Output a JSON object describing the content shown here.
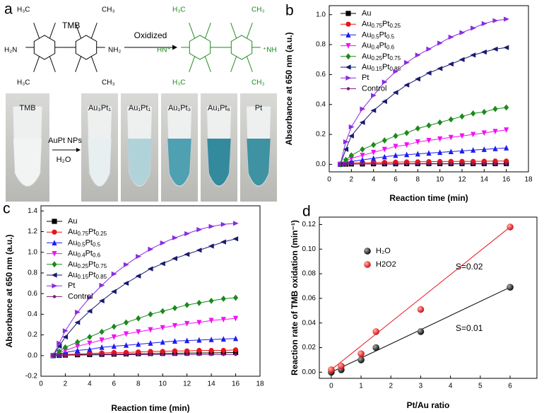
{
  "panel_a": {
    "label": "a",
    "reagent": "TMB",
    "reaction": "Oxidized",
    "catalyst": "AuPt NPs",
    "solvent": "H₂O",
    "tubes": [
      "TMB",
      "Au₃Pt₁",
      "Au₁Pt₁",
      "Au₁Pt₃",
      "Au₁Pt₆",
      "Pt"
    ],
    "tmb_groups": [
      "H₃C",
      "CH₃",
      "H₂N",
      "NH₂",
      "H₃C",
      "CH₃"
    ],
    "oxidized_groups": [
      "H₃C",
      "CH₃",
      "HN⁺",
      "⁺NH",
      "H₃C",
      "CH₃"
    ]
  },
  "chart_data": [
    {
      "type": "line",
      "panel_label": "b",
      "xlabel": "Reaction time (min)",
      "ylabel": "Absorbance at 650 nm (a.u.)",
      "x": [
        1,
        1.5,
        2,
        3,
        4,
        5,
        6,
        7,
        8,
        9,
        10,
        11,
        12,
        13,
        14,
        15,
        16
      ],
      "xlim": [
        0,
        18
      ],
      "xticks": [
        0,
        2,
        4,
        6,
        8,
        10,
        12,
        14,
        16,
        18
      ],
      "ylim": [
        -0.05,
        1.06
      ],
      "yticks": [
        {
          "value": 0,
          "label": "0.0"
        },
        0.2,
        0.4,
        0.6,
        0.8,
        {
          "value": 1,
          "label": "1.0"
        }
      ],
      "series": [
        {
          "name": "Au",
          "color": "#000000",
          "marker": "square",
          "values": [
            0,
            0.002,
            0.003,
            0.003,
            0.004,
            0.004,
            0.004,
            0.005,
            0.005,
            0.005,
            0.005,
            0.005,
            0.005,
            0.005,
            0.005,
            0.005,
            0.005
          ]
        },
        {
          "name": "Au0.75Pt0.25",
          "color": "#e8141b",
          "marker": "circle",
          "values": [
            0,
            0.005,
            0.01,
            0.01,
            0.012,
            0.013,
            0.015,
            0.016,
            0.017,
            0.018,
            0.019,
            0.02,
            0.02,
            0.02,
            0.021,
            0.022,
            0.022
          ]
        },
        {
          "name": "Au0.5Pt0.5",
          "color": "#1c1cf0",
          "marker": "triangle-up",
          "values": [
            0,
            0.01,
            0.02,
            0.03,
            0.04,
            0.05,
            0.06,
            0.065,
            0.07,
            0.075,
            0.08,
            0.085,
            0.09,
            0.095,
            0.1,
            0.105,
            0.11
          ]
        },
        {
          "name": "Au0.4Pt0.6",
          "color": "#f012f0",
          "marker": "triangle-down",
          "values": [
            0,
            0.02,
            0.04,
            0.06,
            0.08,
            0.1,
            0.12,
            0.13,
            0.15,
            0.16,
            0.17,
            0.18,
            0.19,
            0.2,
            0.21,
            0.22,
            0.23
          ]
        },
        {
          "name": "Au0.25Pt0.75",
          "color": "#1b8a1b",
          "marker": "diamond",
          "values": [
            0,
            0.03,
            0.06,
            0.1,
            0.13,
            0.16,
            0.19,
            0.21,
            0.24,
            0.26,
            0.28,
            0.3,
            0.32,
            0.34,
            0.35,
            0.37,
            0.38
          ]
        },
        {
          "name": "Au0.15Pt0.85",
          "color": "#1a1a6e",
          "marker": "triangle-left",
          "values": [
            0,
            0.1,
            0.19,
            0.28,
            0.36,
            0.42,
            0.48,
            0.53,
            0.57,
            0.61,
            0.64,
            0.67,
            0.7,
            0.73,
            0.75,
            0.77,
            0.78
          ]
        },
        {
          "name": "Pt",
          "color": "#8a2be2",
          "marker": "triangle-right",
          "values": [
            0,
            0.15,
            0.25,
            0.37,
            0.46,
            0.55,
            0.62,
            0.68,
            0.73,
            0.77,
            0.81,
            0.85,
            0.88,
            0.91,
            0.94,
            0.96,
            0.97
          ]
        },
        {
          "name": "Control",
          "color": "#7a1a7a",
          "marker": "dot",
          "values": [
            0,
            0.001,
            0.002,
            0.002,
            0.002,
            0.002,
            0.002,
            0.003,
            0.003,
            0.003,
            0.003,
            0.003,
            0.003,
            0.003,
            0.003,
            0.003,
            0.003
          ]
        }
      ]
    },
    {
      "type": "line",
      "panel_label": "c",
      "xlabel": "Reaction time (min)",
      "ylabel": "Absorbance at 650 nm (a.u.)",
      "x": [
        1,
        1.5,
        2,
        3,
        4,
        5,
        6,
        7,
        8,
        9,
        10,
        11,
        12,
        13,
        14,
        15,
        16
      ],
      "xlim": [
        0,
        18
      ],
      "xticks": [
        0,
        2,
        4,
        6,
        8,
        10,
        12,
        14,
        16,
        18
      ],
      "ylim": [
        -0.2,
        1.45
      ],
      "yticks": [
        -0.2,
        {
          "value": 0,
          "label": "0.0"
        },
        0.2,
        0.4,
        0.6,
        0.8,
        {
          "value": 1,
          "label": "1.0"
        },
        1.2,
        1.4
      ],
      "series": [
        {
          "name": "Au",
          "color": "#000000",
          "marker": "square",
          "values": [
            0,
            0.002,
            0.005,
            0.008,
            0.01,
            0.012,
            0.014,
            0.016,
            0.018,
            0.02,
            0.021,
            0.022,
            0.024,
            0.025,
            0.026,
            0.028,
            0.03
          ]
        },
        {
          "name": "Au0.75Pt0.25",
          "color": "#e8141b",
          "marker": "circle",
          "values": [
            0,
            0.005,
            0.01,
            0.015,
            0.02,
            0.025,
            0.03,
            0.03,
            0.035,
            0.04,
            0.04,
            0.045,
            0.045,
            0.05,
            0.05,
            0.05,
            0.055
          ]
        },
        {
          "name": "Au0.5Pt0.5",
          "color": "#1c1cf0",
          "marker": "triangle-up",
          "values": [
            0,
            0.01,
            0.03,
            0.05,
            0.06,
            0.08,
            0.09,
            0.1,
            0.11,
            0.12,
            0.13,
            0.14,
            0.145,
            0.15,
            0.155,
            0.16,
            0.165
          ]
        },
        {
          "name": "Au0.4Pt0.6",
          "color": "#f012f0",
          "marker": "triangle-down",
          "values": [
            0,
            0.03,
            0.05,
            0.09,
            0.12,
            0.15,
            0.18,
            0.21,
            0.23,
            0.25,
            0.27,
            0.29,
            0.31,
            0.32,
            0.34,
            0.35,
            0.36
          ]
        },
        {
          "name": "Au0.25Pt0.75",
          "color": "#1b8a1b",
          "marker": "diamond",
          "values": [
            0,
            0.04,
            0.08,
            0.13,
            0.18,
            0.23,
            0.28,
            0.32,
            0.36,
            0.4,
            0.43,
            0.46,
            0.49,
            0.51,
            0.53,
            0.55,
            0.56
          ]
        },
        {
          "name": "Au0.15Pt0.85",
          "color": "#1a1a6e",
          "marker": "triangle-left",
          "values": [
            0,
            0.09,
            0.18,
            0.32,
            0.43,
            0.53,
            0.62,
            0.7,
            0.77,
            0.84,
            0.89,
            0.94,
            0.98,
            1.02,
            1.06,
            1.1,
            1.13
          ]
        },
        {
          "name": "Pt",
          "color": "#8a2be2",
          "marker": "triangle-right",
          "values": [
            0,
            0.12,
            0.24,
            0.42,
            0.56,
            0.68,
            0.79,
            0.88,
            0.96,
            1.03,
            1.09,
            1.14,
            1.18,
            1.22,
            1.25,
            1.27,
            1.28
          ]
        },
        {
          "name": "Control",
          "color": "#7a1a7a",
          "marker": "dot",
          "values": [
            0,
            0.002,
            0.004,
            0.005,
            0.006,
            0.007,
            0.008,
            0.008,
            0.009,
            0.009,
            0.01,
            0.01,
            0.01,
            0.01,
            0.01,
            0.01,
            0.01
          ]
        }
      ]
    },
    {
      "type": "scatter",
      "panel_label": "d",
      "xlabel": "Pt/Au ratio",
      "ylabel": "Reaction rate of TMB oxidation (min⁻¹)",
      "x": [
        0,
        0.333,
        1,
        1.5,
        3,
        6
      ],
      "xlim": [
        -0.4,
        6.9
      ],
      "xticks": [
        0,
        1,
        2,
        3,
        4,
        5,
        6
      ],
      "ylim": [
        -0.005,
        0.126
      ],
      "yticks": [
        {
          "value": 0,
          "label": "0.00"
        },
        0.02,
        0.04,
        0.06,
        0.08,
        {
          "value": 0.1,
          "label": "0.10"
        },
        0.12
      ],
      "annotations": [
        "S=0.02",
        "S=0.01"
      ],
      "series": [
        {
          "name": "H₂O",
          "color": "#000000",
          "values": [
            0,
            0.002,
            0.01,
            0.02,
            0.033,
            0.069
          ]
        },
        {
          "name": "H2O2",
          "color": "#e8141b",
          "values": [
            0.002,
            0.005,
            0.015,
            0.033,
            0.051,
            0.118
          ]
        }
      ]
    }
  ]
}
